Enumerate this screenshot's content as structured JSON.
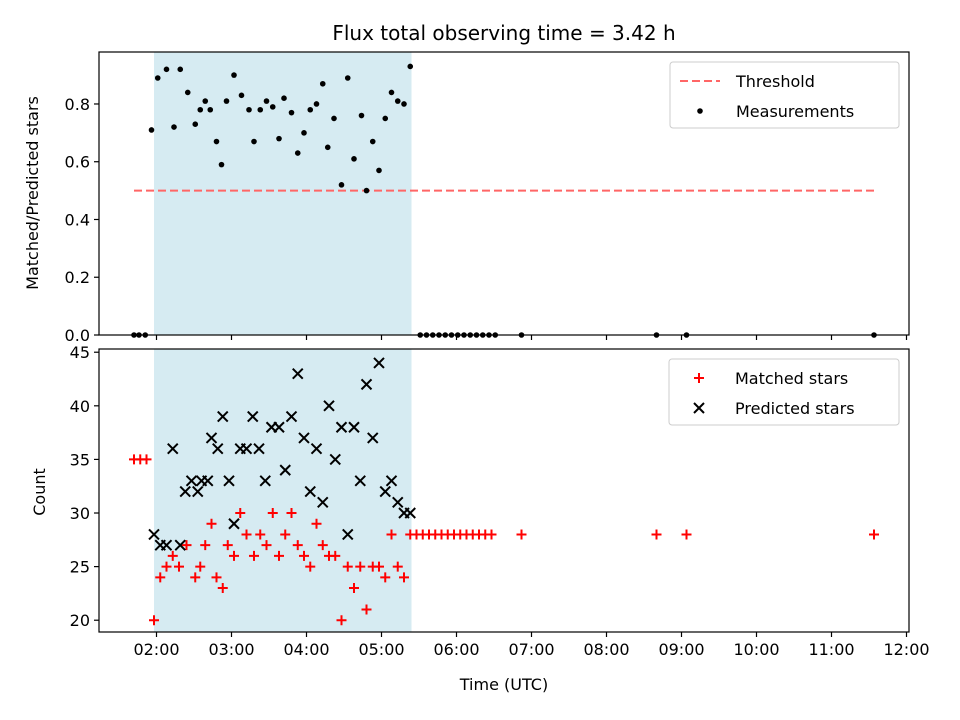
{
  "chart_data": [
    {
      "type": "scatter",
      "title": "Flux total observing time = 3.42 h",
      "xlabel": "",
      "ylabel": "Matched/Predicted stars",
      "xlim": [
        "01:14",
        "12:02"
      ],
      "ylim": [
        0,
        0.98
      ],
      "x_ticks": [
        "02:00",
        "03:00",
        "04:00",
        "05:00",
        "06:00",
        "07:00",
        "08:00",
        "09:00",
        "10:00",
        "11:00",
        "12:00"
      ],
      "x_tick_labels_shown": false,
      "y_ticks": [
        "0.0",
        "0.2",
        "0.4",
        "0.6",
        "0.8"
      ],
      "shaded_span": {
        "start": "01:58",
        "end": "05:24",
        "color": "#add8e6"
      },
      "legend": {
        "placement": "top-right",
        "entries": [
          "Threshold",
          "Measurements"
        ]
      },
      "grid": false,
      "series": [
        {
          "name": "Threshold",
          "kind": "line",
          "style": "dashed",
          "color": "#ff6666",
          "x": [
            "01:42",
            "11:34"
          ],
          "y": [
            0.5,
            0.5
          ]
        },
        {
          "name": "Measurements",
          "kind": "scatter",
          "marker": "dot",
          "color": "#000000",
          "x": [
            "01:42",
            "01:46",
            "01:51",
            "01:56",
            "02:01",
            "02:08",
            "02:14",
            "02:19",
            "02:25",
            "02:31",
            "02:35",
            "02:39",
            "02:43",
            "02:48",
            "02:52",
            "02:56",
            "03:02",
            "03:08",
            "03:14",
            "03:18",
            "03:23",
            "03:28",
            "03:33",
            "03:38",
            "03:42",
            "03:48",
            "03:53",
            "03:58",
            "04:03",
            "04:08",
            "04:13",
            "04:17",
            "04:22",
            "04:28",
            "04:33",
            "04:38",
            "04:44",
            "04:48",
            "04:53",
            "04:58",
            "05:03",
            "05:08",
            "05:13",
            "05:18",
            "05:23",
            "05:31",
            "05:36",
            "05:41",
            "05:46",
            "05:51",
            "05:56",
            "06:01",
            "06:06",
            "06:11",
            "06:16",
            "06:21",
            "06:26",
            "06:31",
            "06:52",
            "08:40",
            "09:04",
            "11:34"
          ],
          "y": [
            0.0,
            0.0,
            0.0,
            0.71,
            0.89,
            0.92,
            0.72,
            0.92,
            0.84,
            0.73,
            0.78,
            0.81,
            0.78,
            0.67,
            0.59,
            0.81,
            0.9,
            0.83,
            0.78,
            0.67,
            0.78,
            0.81,
            0.79,
            0.68,
            0.82,
            0.77,
            0.63,
            0.7,
            0.78,
            0.8,
            0.87,
            0.65,
            0.75,
            0.52,
            0.89,
            0.61,
            0.76,
            0.5,
            0.67,
            0.57,
            0.75,
            0.84,
            0.81,
            0.8,
            0.93,
            0.0,
            0.0,
            0.0,
            0.0,
            0.0,
            0.0,
            0.0,
            0.0,
            0.0,
            0.0,
            0.0,
            0.0,
            0.0,
            0.0,
            0.0,
            0.0,
            0.0
          ]
        }
      ]
    },
    {
      "type": "scatter",
      "title": "",
      "xlabel": "Time (UTC)",
      "ylabel": "Count",
      "xlim": [
        "01:14",
        "12:02"
      ],
      "ylim": [
        18.9,
        45.3
      ],
      "x_ticks": [
        "02:00",
        "03:00",
        "04:00",
        "05:00",
        "06:00",
        "07:00",
        "08:00",
        "09:00",
        "10:00",
        "11:00",
        "12:00"
      ],
      "x_tick_labels_shown": true,
      "y_ticks": [
        "20",
        "25",
        "30",
        "35",
        "40",
        "45"
      ],
      "shaded_span": {
        "start": "01:58",
        "end": "05:24",
        "color": "#add8e6"
      },
      "legend": {
        "placement": "top-right",
        "entries": [
          "Matched stars",
          "Predicted stars"
        ]
      },
      "grid": false,
      "series": [
        {
          "name": "Matched stars",
          "kind": "scatter",
          "marker": "plus",
          "color": "#ff0000",
          "x": [
            "01:42",
            "01:47",
            "01:52",
            "01:58",
            "02:03",
            "02:08",
            "02:13",
            "02:18",
            "02:24",
            "02:31",
            "02:35",
            "02:39",
            "02:44",
            "02:48",
            "02:53",
            "02:57",
            "03:02",
            "03:07",
            "03:12",
            "03:18",
            "03:23",
            "03:28",
            "03:33",
            "03:38",
            "03:43",
            "03:48",
            "03:53",
            "03:58",
            "04:03",
            "04:08",
            "04:13",
            "04:18",
            "04:23",
            "04:28",
            "04:33",
            "04:38",
            "04:43",
            "04:48",
            "04:53",
            "04:58",
            "05:03",
            "05:08",
            "05:13",
            "05:18",
            "05:23",
            "05:28",
            "05:33",
            "05:38",
            "05:43",
            "05:48",
            "05:53",
            "05:58",
            "06:03",
            "06:08",
            "06:13",
            "06:18",
            "06:23",
            "06:28",
            "06:52",
            "08:40",
            "09:04",
            "11:34"
          ],
          "y": [
            35,
            35,
            35,
            20,
            24,
            25,
            26,
            25,
            27,
            24,
            25,
            27,
            29,
            24,
            23,
            27,
            26,
            30,
            28,
            26,
            28,
            27,
            30,
            26,
            28,
            30,
            27,
            26,
            25,
            29,
            27,
            26,
            26,
            20,
            25,
            23,
            25,
            21,
            25,
            25,
            24,
            28,
            25,
            24,
            28,
            28,
            28,
            28,
            28,
            28,
            28,
            28,
            28,
            28,
            28,
            28,
            28,
            28,
            28,
            28,
            28,
            28
          ]
        },
        {
          "name": "Predicted stars",
          "kind": "scatter",
          "marker": "x",
          "color": "#000000",
          "x": [
            "01:58",
            "02:03",
            "02:08",
            "02:13",
            "02:19",
            "02:23",
            "02:28",
            "02:33",
            "02:36",
            "02:41",
            "02:44",
            "02:49",
            "02:53",
            "02:58",
            "03:02",
            "03:07",
            "03:12",
            "03:17",
            "03:22",
            "03:27",
            "03:32",
            "03:38",
            "03:43",
            "03:48",
            "03:53",
            "03:58",
            "04:03",
            "04:08",
            "04:13",
            "04:18",
            "04:23",
            "04:28",
            "04:33",
            "04:38",
            "04:43",
            "04:48",
            "04:53",
            "04:58",
            "05:03",
            "05:08",
            "05:13",
            "05:18",
            "05:23"
          ],
          "y": [
            28,
            27,
            27,
            36,
            27,
            32,
            33,
            32,
            33,
            33,
            37,
            36,
            39,
            33,
            29,
            36,
            36,
            39,
            36,
            33,
            38,
            38,
            34,
            39,
            43,
            37,
            32,
            36,
            31,
            40,
            35,
            38,
            28,
            38,
            33,
            42,
            37,
            44,
            32,
            33,
            31,
            30,
            30
          ]
        }
      ]
    }
  ]
}
